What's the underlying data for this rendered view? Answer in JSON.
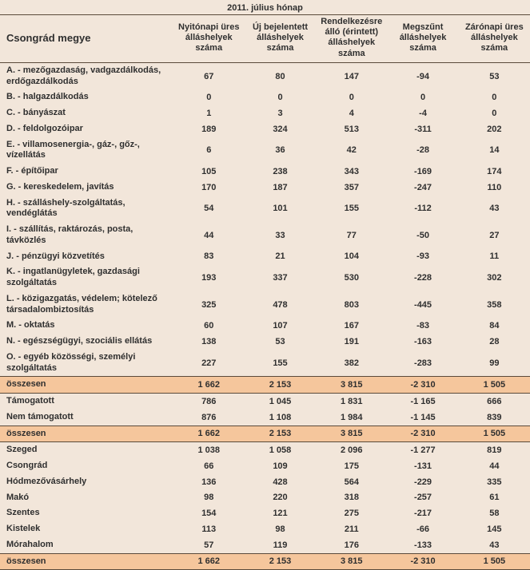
{
  "colors": {
    "bg": "#f2e6da",
    "summary_bg": "#f5c69c",
    "border": "#5a4a3a",
    "text": "#2f2f2f"
  },
  "title": "2011. július hónap",
  "region_header": "Csongrád megye",
  "columns": [
    "Nyitónapi üres álláshelyek száma",
    "Új bejelentett álláshelyek száma",
    "Rendelkezésre álló (érintett) álláshelyek száma",
    "Megszűnt álláshelyek száma",
    "Zárónapi üres álláshelyek száma"
  ],
  "sections": [
    {
      "rows": [
        {
          "label": "A. - mezőgazdaság, vadgazdálkodás, erdőgazdálkodás",
          "v": [
            "67",
            "80",
            "147",
            "-94",
            "53"
          ]
        },
        {
          "label": "B. - halgazdálkodás",
          "v": [
            "0",
            "0",
            "0",
            "0",
            "0"
          ]
        },
        {
          "label": "C. - bányászat",
          "v": [
            "1",
            "3",
            "4",
            "-4",
            "0"
          ]
        },
        {
          "label": "D. - feldolgozóipar",
          "v": [
            "189",
            "324",
            "513",
            "-311",
            "202"
          ]
        },
        {
          "label": "E. - villamosenergia-, gáz-, gőz-, vízellátás",
          "v": [
            "6",
            "36",
            "42",
            "-28",
            "14"
          ]
        },
        {
          "label": "F. - építőipar",
          "v": [
            "105",
            "238",
            "343",
            "-169",
            "174"
          ]
        },
        {
          "label": "G. - kereskedelem, javítás",
          "v": [
            "170",
            "187",
            "357",
            "-247",
            "110"
          ]
        },
        {
          "label": "H. - szálláshely-szolgáltatás, vendéglátás",
          "v": [
            "54",
            "101",
            "155",
            "-112",
            "43"
          ]
        },
        {
          "label": "I. - szállítás, raktározás, posta, távközlés",
          "v": [
            "44",
            "33",
            "77",
            "-50",
            "27"
          ]
        },
        {
          "label": "J. - pénzügyi közvetítés",
          "v": [
            "83",
            "21",
            "104",
            "-93",
            "11"
          ]
        },
        {
          "label": "K. - ingatlanügyletek, gazdasági szolgáltatás",
          "v": [
            "193",
            "337",
            "530",
            "-228",
            "302"
          ]
        },
        {
          "label": "L. - közigazgatás, védelem; kötelező társadalombiztosítás",
          "v": [
            "325",
            "478",
            "803",
            "-445",
            "358"
          ]
        },
        {
          "label": "M. - oktatás",
          "v": [
            "60",
            "107",
            "167",
            "-83",
            "84"
          ]
        },
        {
          "label": "N. - egészségügyi, szociális ellátás",
          "v": [
            "138",
            "53",
            "191",
            "-163",
            "28"
          ]
        },
        {
          "label": "O. - egyéb közösségi, személyi szolgáltatás",
          "v": [
            "227",
            "155",
            "382",
            "-283",
            "99"
          ]
        }
      ],
      "summary": {
        "label": "összesen",
        "v": [
          "1 662",
          "2 153",
          "3 815",
          "-2 310",
          "1 505"
        ]
      }
    },
    {
      "rows": [
        {
          "label": "Támogatott",
          "v": [
            "786",
            "1 045",
            "1 831",
            "-1 165",
            "666"
          ]
        },
        {
          "label": "Nem támogatott",
          "v": [
            "876",
            "1 108",
            "1 984",
            "-1 145",
            "839"
          ]
        }
      ],
      "summary": {
        "label": "összesen",
        "v": [
          "1 662",
          "2 153",
          "3 815",
          "-2 310",
          "1 505"
        ]
      }
    },
    {
      "rows": [
        {
          "label": "Szeged",
          "v": [
            "1 038",
            "1 058",
            "2 096",
            "-1 277",
            "819"
          ]
        },
        {
          "label": "Csongrád",
          "v": [
            "66",
            "109",
            "175",
            "-131",
            "44"
          ]
        },
        {
          "label": "Hódmezővásárhely",
          "v": [
            "136",
            "428",
            "564",
            "-229",
            "335"
          ]
        },
        {
          "label": "Makó",
          "v": [
            "98",
            "220",
            "318",
            "-257",
            "61"
          ]
        },
        {
          "label": "Szentes",
          "v": [
            "154",
            "121",
            "275",
            "-217",
            "58"
          ]
        },
        {
          "label": "Kistelek",
          "v": [
            "113",
            "98",
            "211",
            "-66",
            "145"
          ]
        },
        {
          "label": "Mórahalom",
          "v": [
            "57",
            "119",
            "176",
            "-133",
            "43"
          ]
        }
      ],
      "summary": {
        "label": "összesen",
        "v": [
          "1 662",
          "2 153",
          "3 815",
          "-2 310",
          "1 505"
        ]
      }
    }
  ]
}
